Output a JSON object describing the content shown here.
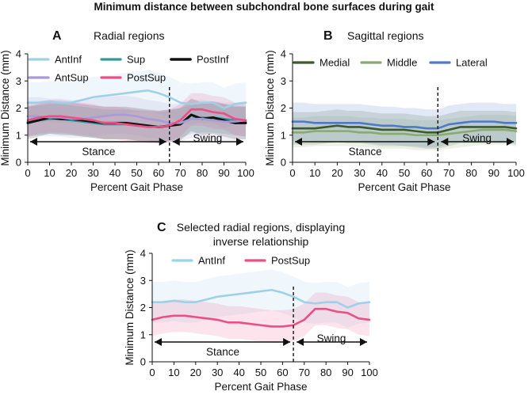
{
  "title": "Minimum distance between subchondral bone surfaces during gait",
  "colors": {
    "AntInf": "#9fd0ea",
    "Sup": "#2a9d9a",
    "PostInf": "#111111",
    "AntSup": "#a99bd6",
    "PostSup": "#ec4f86",
    "Medial": "#3b5a2a",
    "Middle": "#8aaa6f",
    "Lateral": "#4d79c7"
  },
  "chart_data": [
    {
      "type": "line",
      "panel_label": "A",
      "title": "Radial regions",
      "xlabel": "Percent Gait Phase",
      "ylabel": "Minimum Distance (mm)",
      "xlim": [
        0,
        100
      ],
      "ylim": [
        0,
        4
      ],
      "xticks": [
        "0",
        "10",
        "20",
        "30",
        "40",
        "50",
        "60",
        "70",
        "80",
        "90",
        "100"
      ],
      "yticks": [
        "0",
        "1",
        "2",
        "3",
        "4"
      ],
      "x": [
        0,
        5,
        10,
        15,
        20,
        25,
        30,
        35,
        40,
        45,
        50,
        55,
        60,
        65,
        70,
        75,
        80,
        85,
        90,
        95,
        100
      ],
      "divider_x": 65,
      "phase_labels": [
        "Stance",
        "Swing"
      ],
      "legend": [
        "AntInf",
        "Sup",
        "PostInf",
        "AntSup",
        "PostSup"
      ],
      "series": [
        {
          "name": "AntInf",
          "values": [
            2.2,
            2.2,
            2.25,
            2.2,
            2.2,
            2.3,
            2.4,
            2.45,
            2.5,
            2.55,
            2.6,
            2.65,
            2.55,
            2.4,
            2.2,
            2.15,
            2.2,
            2.2,
            2.0,
            2.15,
            2.2
          ],
          "band": 0.75
        },
        {
          "name": "Sup",
          "values": [
            1.5,
            1.55,
            1.6,
            1.6,
            1.55,
            1.5,
            1.45,
            1.4,
            1.4,
            1.4,
            1.35,
            1.35,
            1.3,
            1.35,
            1.45,
            1.6,
            1.65,
            1.65,
            1.6,
            1.55,
            1.5
          ],
          "band": 0.55
        },
        {
          "name": "PostInf",
          "values": [
            1.45,
            1.55,
            1.65,
            1.6,
            1.6,
            1.55,
            1.5,
            1.45,
            1.45,
            1.45,
            1.4,
            1.35,
            1.3,
            1.35,
            1.4,
            1.75,
            1.6,
            1.65,
            1.55,
            1.45,
            1.45
          ],
          "band": 0.6
        },
        {
          "name": "AntSup",
          "values": [
            1.7,
            1.7,
            1.65,
            1.65,
            1.6,
            1.6,
            1.65,
            1.7,
            1.75,
            1.75,
            1.7,
            1.6,
            1.55,
            1.45,
            1.45,
            1.6,
            1.6,
            1.55,
            1.5,
            1.5,
            1.55
          ],
          "band": 0.7
        },
        {
          "name": "PostSup",
          "values": [
            1.55,
            1.65,
            1.7,
            1.7,
            1.65,
            1.6,
            1.55,
            1.45,
            1.45,
            1.4,
            1.35,
            1.3,
            1.3,
            1.35,
            1.55,
            1.95,
            1.95,
            1.85,
            1.8,
            1.6,
            1.55
          ],
          "band": 0.6
        }
      ]
    },
    {
      "type": "line",
      "panel_label": "B",
      "title": "Sagittal regions",
      "xlabel": "Percent Gait Phase",
      "ylabel": "Minimum Distance (mm)",
      "xlim": [
        0,
        100
      ],
      "ylim": [
        0,
        4
      ],
      "xticks": [
        "0",
        "10",
        "20",
        "30",
        "40",
        "50",
        "60",
        "70",
        "80",
        "90",
        "100"
      ],
      "yticks": [
        "0",
        "1",
        "2",
        "3",
        "4"
      ],
      "x": [
        0,
        5,
        10,
        15,
        20,
        25,
        30,
        35,
        40,
        45,
        50,
        55,
        60,
        65,
        70,
        75,
        80,
        85,
        90,
        95,
        100
      ],
      "divider_x": 65,
      "phase_labels": [
        "Stance",
        "Swing"
      ],
      "legend": [
        "Medial",
        "Middle",
        "Lateral"
      ],
      "series": [
        {
          "name": "Medial",
          "values": [
            1.25,
            1.25,
            1.25,
            1.3,
            1.35,
            1.3,
            1.3,
            1.25,
            1.2,
            1.2,
            1.2,
            1.15,
            1.1,
            1.1,
            1.2,
            1.3,
            1.3,
            1.3,
            1.3,
            1.3,
            1.25
          ],
          "band": 0.6
        },
        {
          "name": "Middle",
          "values": [
            1.1,
            1.1,
            1.15,
            1.15,
            1.15,
            1.15,
            1.1,
            1.1,
            1.05,
            1.05,
            1.05,
            1.0,
            1.0,
            1.0,
            1.05,
            1.1,
            1.15,
            1.2,
            1.2,
            1.2,
            1.15
          ],
          "band": 0.55
        },
        {
          "name": "Lateral",
          "values": [
            1.5,
            1.5,
            1.45,
            1.45,
            1.45,
            1.45,
            1.45,
            1.4,
            1.35,
            1.35,
            1.3,
            1.3,
            1.25,
            1.25,
            1.4,
            1.45,
            1.5,
            1.5,
            1.5,
            1.45,
            1.45
          ],
          "band": 0.7
        }
      ]
    },
    {
      "type": "line",
      "panel_label": "C",
      "title": "Selected radial regions, displaying inverse relationship",
      "title_lines": [
        "Selected radial regions, displaying",
        "inverse relationship"
      ],
      "xlabel": "Percent Gait Phase",
      "ylabel": "Minimum Distance (mm)",
      "xlim": [
        0,
        100
      ],
      "ylim": [
        0,
        4
      ],
      "xticks": [
        "0",
        "10",
        "20",
        "30",
        "40",
        "50",
        "60",
        "70",
        "80",
        "90",
        "100"
      ],
      "yticks": [
        "0",
        "1",
        "2",
        "3",
        "4"
      ],
      "x": [
        0,
        5,
        10,
        15,
        20,
        25,
        30,
        35,
        40,
        45,
        50,
        55,
        60,
        65,
        70,
        75,
        80,
        85,
        90,
        95,
        100
      ],
      "divider_x": 65,
      "phase_labels": [
        "Stance",
        "Swing"
      ],
      "legend": [
        "AntInf",
        "PostSup"
      ],
      "series": [
        {
          "name": "AntInf",
          "values": [
            2.2,
            2.2,
            2.25,
            2.2,
            2.2,
            2.3,
            2.4,
            2.45,
            2.5,
            2.55,
            2.6,
            2.65,
            2.55,
            2.4,
            2.2,
            2.15,
            2.2,
            2.2,
            2.0,
            2.15,
            2.2
          ],
          "band": 0.75
        },
        {
          "name": "PostSup",
          "values": [
            1.55,
            1.65,
            1.7,
            1.7,
            1.65,
            1.6,
            1.55,
            1.45,
            1.45,
            1.4,
            1.35,
            1.3,
            1.3,
            1.35,
            1.55,
            1.95,
            1.95,
            1.85,
            1.8,
            1.6,
            1.55
          ],
          "band": 0.6
        }
      ]
    }
  ]
}
